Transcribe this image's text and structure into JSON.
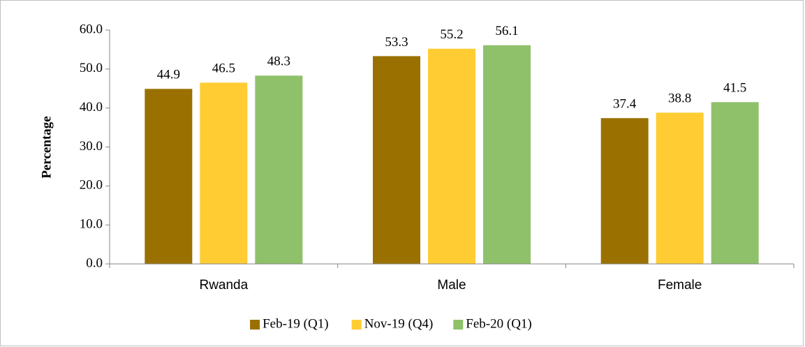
{
  "chart_data": {
    "type": "bar",
    "y_label": "Percentage",
    "categories": [
      "Rwanda",
      "Male",
      "Female"
    ],
    "series": [
      {
        "name": "Feb-19 (Q1)",
        "color": "#9a7100",
        "values": [
          44.9,
          53.3,
          37.4
        ]
      },
      {
        "name": "Nov-19 (Q4)",
        "color": "#ffcc33",
        "values": [
          46.5,
          55.2,
          38.8
        ]
      },
      {
        "name": "Feb-20 (Q1)",
        "color": "#8fc16a",
        "values": [
          48.3,
          56.1,
          41.5
        ]
      }
    ],
    "ylim": [
      0,
      60
    ],
    "yticks": [
      {
        "value": 0,
        "label": "0.0"
      },
      {
        "value": 10,
        "label": "10.0"
      },
      {
        "value": 20,
        "label": "20.0"
      },
      {
        "value": 30,
        "label": "30.0"
      },
      {
        "value": 40,
        "label": "40.0"
      },
      {
        "value": 50,
        "label": "50.0"
      },
      {
        "value": 60,
        "label": "60.0"
      }
    ],
    "grid": false,
    "legend": "bottom"
  }
}
